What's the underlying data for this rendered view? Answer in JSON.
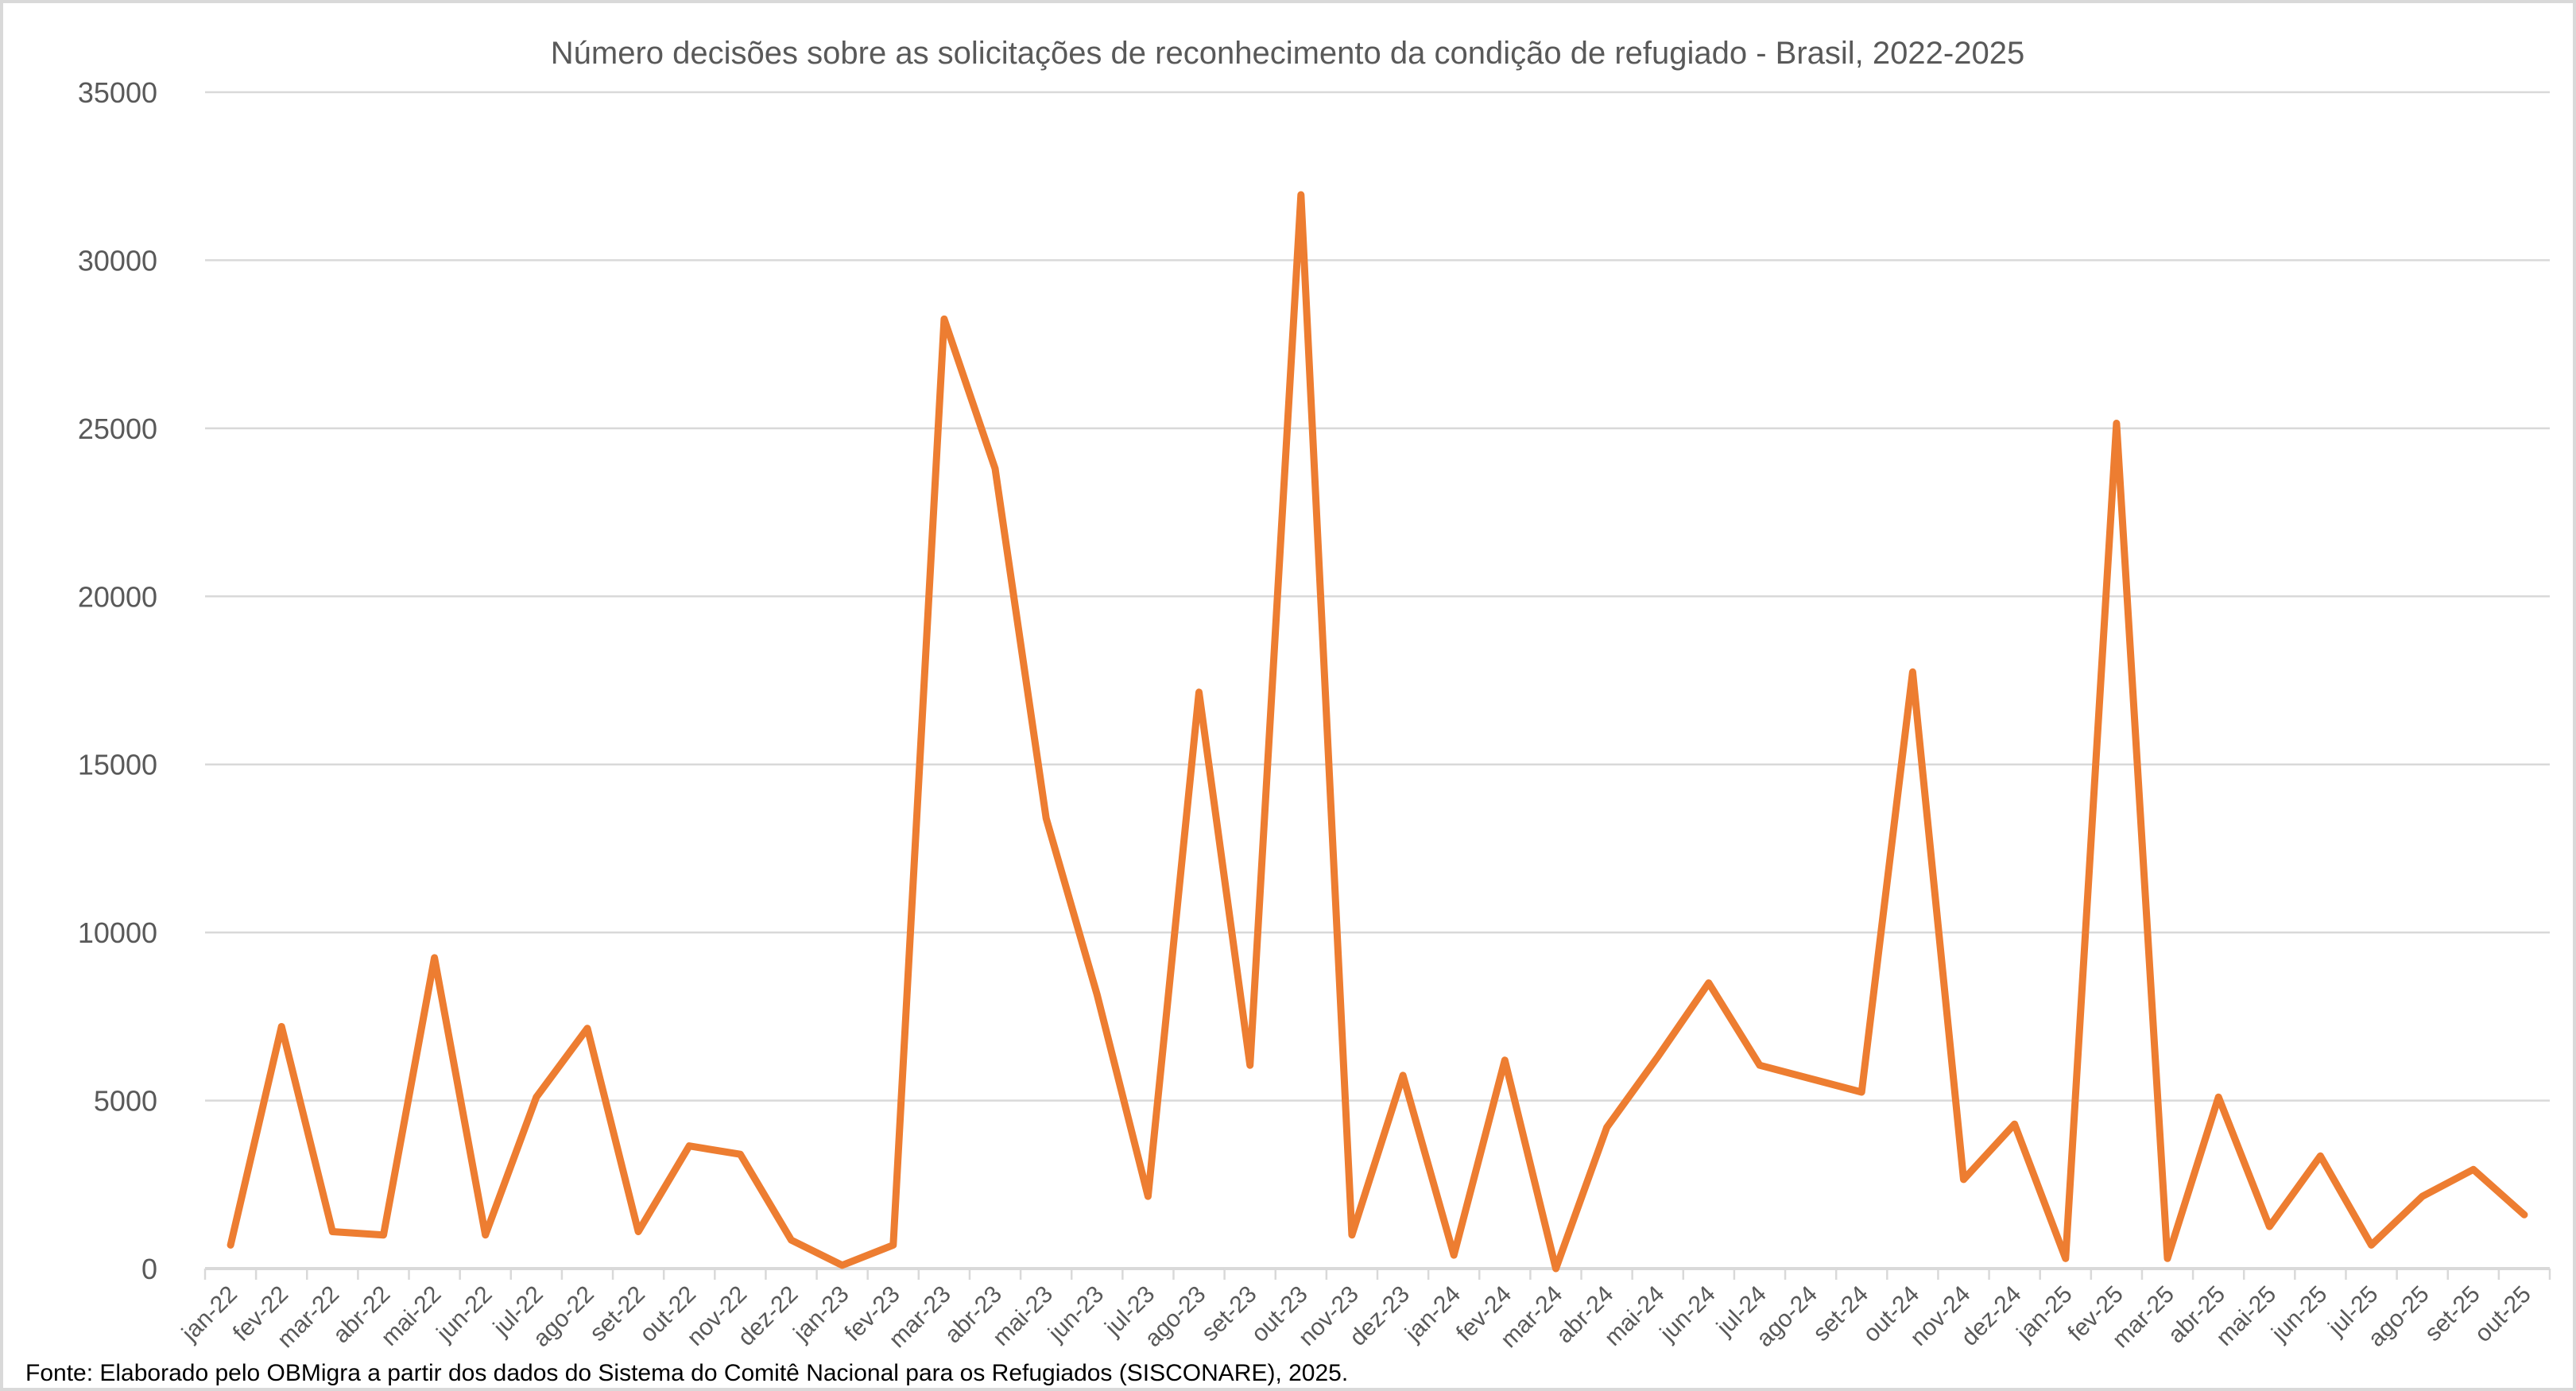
{
  "chart_data": {
    "type": "line",
    "title": "Número decisões sobre as solicitações de reconhecimento da condição de refugiado - Brasil, 2022-2025",
    "source": "Fonte: Elaborado pelo OBMigra a partir dos dados  do Sistema do Comitê Nacional para os Refugiados (SISCONARE), 2025.",
    "xlabel": "",
    "ylabel": "",
    "ylim": [
      0,
      35000
    ],
    "yticks": [
      0,
      5000,
      10000,
      15000,
      20000,
      25000,
      30000,
      35000
    ],
    "grid": true,
    "legend": "none",
    "line_color": "#ed7d31",
    "categories": [
      "jan-22",
      "fev-22",
      "mar-22",
      "abr-22",
      "mai-22",
      "jun-22",
      "jul-22",
      "ago-22",
      "set-22",
      "out-22",
      "nov-22",
      "dez-22",
      "jan-23",
      "fev-23",
      "mar-23",
      "abr-23",
      "mai-23",
      "jun-23",
      "jul-23",
      "ago-23",
      "set-23",
      "out-23",
      "nov-23",
      "dez-23",
      "jan-24",
      "fev-24",
      "mar-24",
      "abr-24",
      "mai-24",
      "jun-24",
      "jul-24",
      "ago-24",
      "set-24",
      "out-24",
      "nov-24",
      "dez-24",
      "jan-25",
      "fev-25",
      "mar-25",
      "abr-25",
      "mai-25",
      "jun-25",
      "jul-25",
      "ago-25",
      "set-25",
      "out-25"
    ],
    "series": [
      {
        "values": [
          700,
          7200,
          1100,
          1000,
          9250,
          1000,
          5100,
          7150,
          1100,
          3650,
          3400,
          850,
          100,
          700,
          28250,
          23800,
          13400,
          8150,
          2150,
          17150,
          6050,
          31950,
          1000,
          5750,
          400,
          6200,
          0,
          4200,
          6300,
          8500,
          6050,
          5650,
          5250,
          17750,
          2650,
          4300,
          300,
          25150,
          300,
          5100,
          1250,
          3350,
          700,
          2150,
          2950,
          1600
        ]
      }
    ]
  }
}
